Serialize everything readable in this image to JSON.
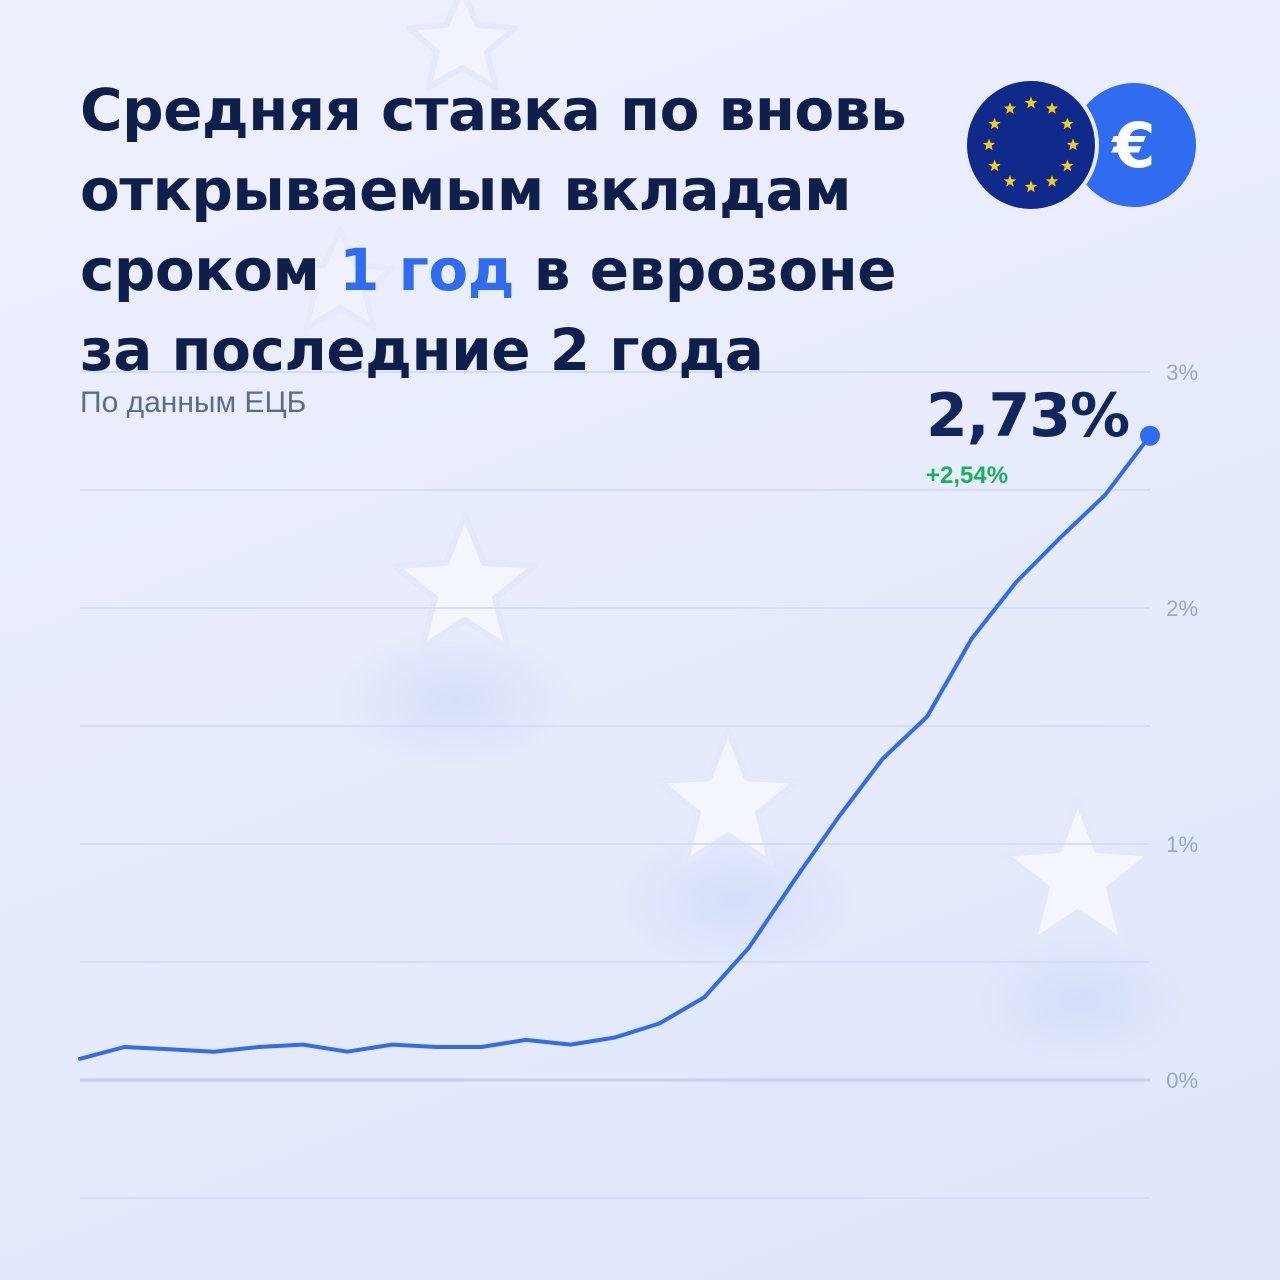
{
  "header": {
    "title_before": "Средняя ставка по вновь открываемым вкладам сроком ",
    "title_highlight": "1 год",
    "title_after": " в еврозоне за последние 2 года",
    "source": "По данным ЕЦБ"
  },
  "badges": {
    "euro_symbol": "€",
    "eu_flag_icon": "eu-flag-icon",
    "euro_icon": "euro-coin-icon"
  },
  "summary": {
    "last_value": "2,73%",
    "change": "+2,54%"
  },
  "colors": {
    "title": "#0f1f4b",
    "highlight": "#2f6cf0",
    "line": "#2f6cf0",
    "change": "#19b25a",
    "eu_blue": "#0f2a8a",
    "eu_star": "#f5cc14",
    "coin_blue": "#2f6cf0"
  },
  "chart_data": {
    "type": "line",
    "title": "Средняя ставка по вновь открываемым вкладам сроком 1 год в еврозоне за последние 2 года",
    "xlabel": "",
    "ylabel": "",
    "ylim": [
      -0.5,
      3.0
    ],
    "yticks": [
      0,
      1,
      2,
      3
    ],
    "ytick_labels": [
      "0%",
      "1%",
      "2%",
      "3%"
    ],
    "grid": true,
    "series": [
      {
        "values": [
          0.09,
          0.14,
          0.13,
          0.12,
          0.14,
          0.15,
          0.12,
          0.15,
          0.14,
          0.14,
          0.17,
          0.15,
          0.18,
          0.24,
          0.35,
          0.56,
          0.84,
          1.11,
          1.36,
          1.54,
          1.87,
          2.11,
          2.3,
          2.48,
          2.73
        ]
      }
    ]
  }
}
